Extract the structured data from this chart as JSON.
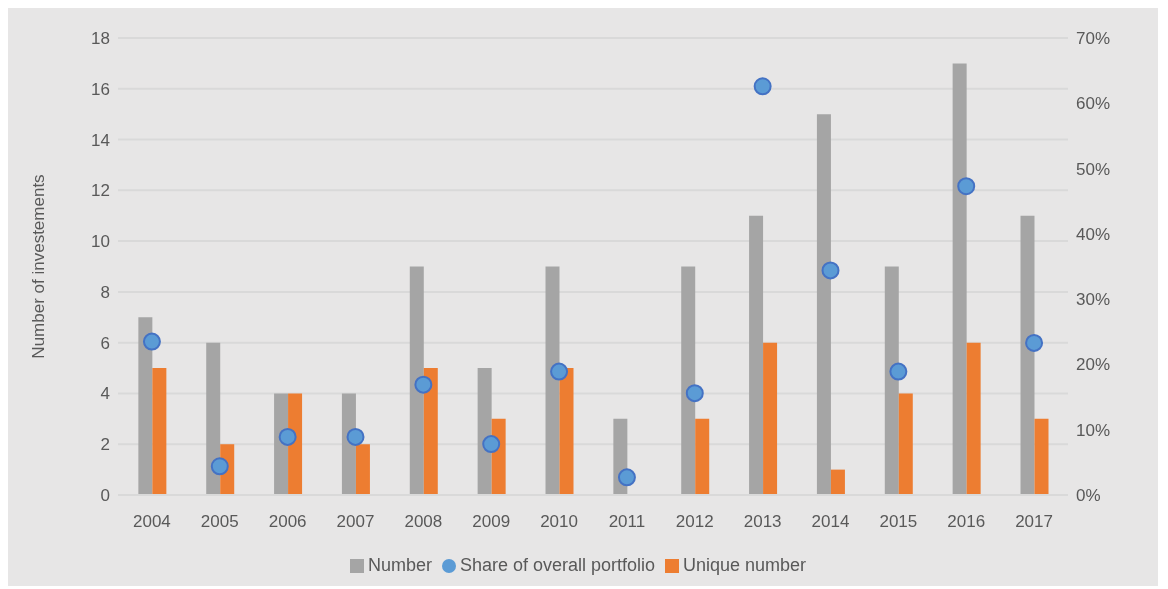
{
  "chart_data": {
    "type": "bar",
    "ylabel": "Number of investements",
    "categories": [
      "2004",
      "2005",
      "2006",
      "2007",
      "2008",
      "2009",
      "2010",
      "2011",
      "2012",
      "2013",
      "2014",
      "2015",
      "2016",
      "2017"
    ],
    "series": [
      {
        "name": "Number",
        "color": "#a5a5a5",
        "values": [
          7,
          6,
          4,
          4,
          9,
          5,
          9,
          3,
          9,
          11,
          15,
          9,
          17,
          11
        ]
      },
      {
        "name": "Unique number",
        "color": "#ed7d31",
        "values": [
          5,
          2,
          4,
          2,
          5,
          3,
          5,
          0,
          3,
          6,
          1,
          4,
          6,
          3
        ]
      },
      {
        "name": "Share of overall portfolio",
        "type": "scatter",
        "axis": "y2",
        "color": "#5b9bd5",
        "marker": "circle",
        "values": [
          23.5,
          4.4,
          8.9,
          8.9,
          16.9,
          7.8,
          18.9,
          2.7,
          15.6,
          62.6,
          34.4,
          18.9,
          47.3,
          23.3
        ]
      }
    ],
    "ylim": [
      0,
      18
    ],
    "yticks": [
      0,
      2,
      4,
      6,
      8,
      10,
      12,
      14,
      16,
      18
    ],
    "y2lim": [
      0,
      70
    ],
    "y2ticks": [
      {
        "value": 0,
        "label": "0%"
      },
      {
        "value": 10,
        "label": "10%"
      },
      {
        "value": 20,
        "label": "20%"
      },
      {
        "value": 30,
        "label": "30%"
      },
      {
        "value": 40,
        "label": "40%"
      },
      {
        "value": 50,
        "label": "50%"
      },
      {
        "value": 60,
        "label": "60%"
      },
      {
        "value": 70,
        "label": "70%"
      }
    ],
    "grid": "y",
    "legend": "bottom"
  }
}
